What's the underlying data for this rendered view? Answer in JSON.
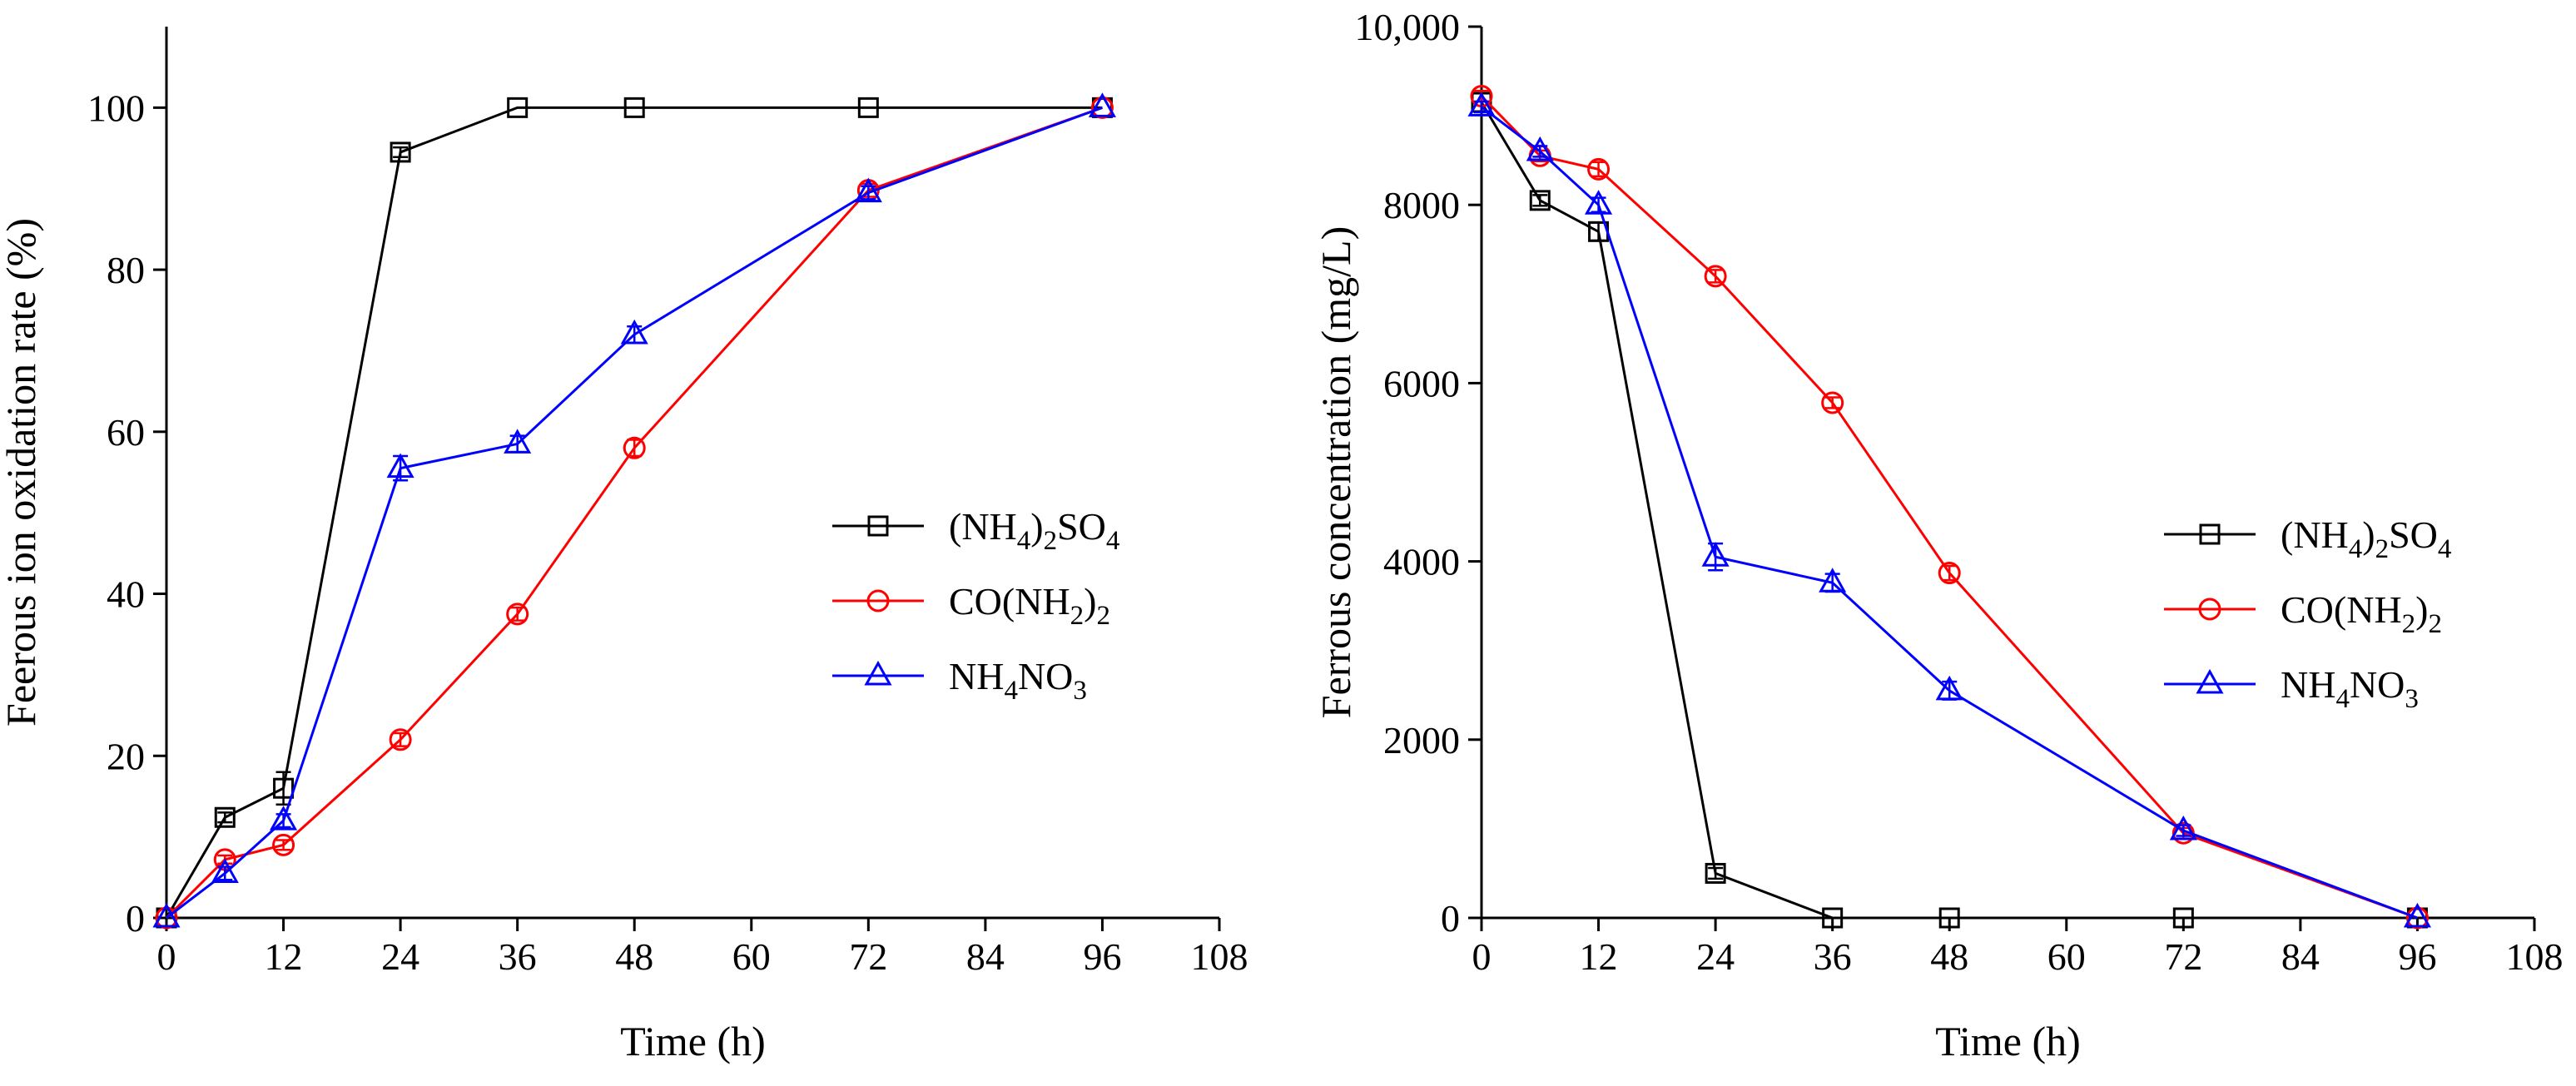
{
  "chart_data": [
    {
      "type": "line",
      "title": "",
      "xlabel": "Time (h)",
      "ylabel": "Feerous ion oxidation rate (%)",
      "xlim": [
        0,
        108
      ],
      "ylim": [
        0,
        110
      ],
      "xticks": [
        0,
        12,
        24,
        36,
        48,
        60,
        72,
        84,
        96,
        108
      ],
      "yticks": [
        0,
        20,
        40,
        60,
        80,
        100
      ],
      "ytick_labels": [
        "0",
        "20",
        "40",
        "60",
        "80",
        "100"
      ],
      "legend_position": "center-right",
      "series": [
        {
          "key": "nh4so4",
          "legend": [
            "(NH",
            "4",
            ")",
            "2",
            "SO",
            "4"
          ],
          "color": "#000000",
          "marker": "square",
          "x": [
            0,
            6,
            12,
            24,
            36,
            48,
            72,
            96
          ],
          "y": [
            0,
            12.4,
            16,
            94.5,
            100,
            100,
            100,
            100
          ],
          "err": [
            0,
            0.6,
            2,
            0.6,
            0,
            0,
            0,
            0
          ]
        },
        {
          "key": "urea",
          "legend": [
            "CO(NH",
            "2",
            ")",
            "2"
          ],
          "color": "#ff0000",
          "marker": "circle",
          "x": [
            0,
            6,
            12,
            24,
            36,
            48,
            72,
            96
          ],
          "y": [
            0,
            7.2,
            9,
            22,
            37.5,
            58,
            89.8,
            100
          ],
          "err": [
            0,
            0.5,
            0.6,
            0.8,
            0.8,
            1,
            0.8,
            0
          ]
        },
        {
          "key": "nh4no3",
          "legend": [
            "NH",
            "4",
            "NO",
            "3"
          ],
          "color": "#0000ff",
          "marker": "triangle",
          "x": [
            0,
            6,
            12,
            24,
            36,
            48,
            72,
            96
          ],
          "y": [
            0,
            5.5,
            12,
            55.5,
            58.5,
            72,
            89.5,
            100
          ],
          "err": [
            0,
            0.8,
            0.8,
            1.5,
            1,
            1,
            0.8,
            0
          ]
        }
      ]
    },
    {
      "type": "line",
      "title": "",
      "xlabel": "Time (h)",
      "ylabel": "Ferrous concentration (mg/L)",
      "xlim": [
        0,
        108
      ],
      "ylim": [
        0,
        10000
      ],
      "xticks": [
        0,
        12,
        24,
        36,
        48,
        60,
        72,
        84,
        96,
        108
      ],
      "yticks": [
        0,
        2000,
        4000,
        6000,
        8000,
        10000
      ],
      "ytick_labels": [
        "0",
        "2000",
        "4000",
        "6000",
        "8000",
        "10,000"
      ],
      "legend_position": "center-right",
      "series": [
        {
          "key": "nh4so4",
          "legend": [
            "(NH",
            "4",
            ")",
            "2",
            "SO",
            "4"
          ],
          "color": "#000000",
          "marker": "square",
          "x": [
            0,
            6,
            12,
            24,
            36,
            48,
            72,
            96
          ],
          "y": [
            9150,
            8050,
            7700,
            500,
            0,
            0,
            0,
            0
          ],
          "err": [
            0,
            60,
            100,
            60,
            0,
            0,
            0,
            0
          ]
        },
        {
          "key": "urea",
          "legend": [
            "CO(NH",
            "2",
            ")",
            "2"
          ],
          "color": "#ff0000",
          "marker": "circle",
          "x": [
            0,
            6,
            12,
            24,
            36,
            48,
            72,
            96
          ],
          "y": [
            9220,
            8550,
            8400,
            7200,
            5780,
            3870,
            950,
            0
          ],
          "err": [
            60,
            60,
            80,
            70,
            60,
            80,
            60,
            0
          ]
        },
        {
          "key": "nh4no3",
          "legend": [
            "NH",
            "4",
            "NO",
            "3"
          ],
          "color": "#0000ff",
          "marker": "triangle",
          "x": [
            0,
            6,
            12,
            24,
            36,
            48,
            72,
            96
          ],
          "y": [
            9100,
            8600,
            8000,
            4050,
            3760,
            2550,
            980,
            0
          ],
          "err": [
            60,
            60,
            80,
            150,
            100,
            100,
            60,
            0
          ]
        }
      ]
    }
  ]
}
